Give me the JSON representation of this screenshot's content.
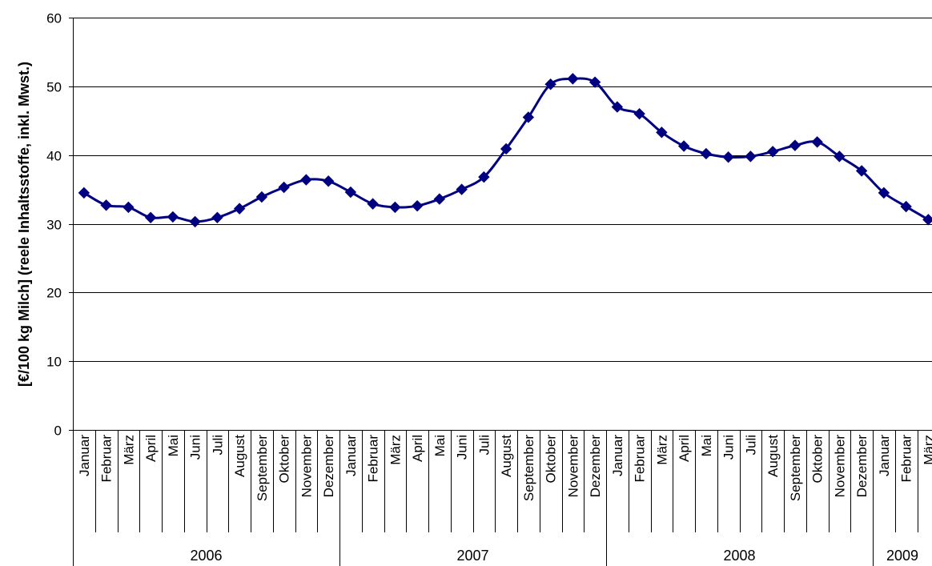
{
  "chart_data": {
    "type": "line",
    "title": "",
    "xlabel": "",
    "ylabel": "[€/100 kg Milch] (reele Inhaltsstoffe, inkl. Mwst.)",
    "ylim": [
      0,
      60
    ],
    "yticks": [
      0,
      10,
      20,
      30,
      40,
      50,
      60
    ],
    "grid": true,
    "legend": "none",
    "colors": {
      "line": "#000080",
      "marker": "#000080",
      "grid": "#000000"
    },
    "marker": "diamond",
    "groups": [
      {
        "label": "2006",
        "months": [
          "Januar",
          "Februar",
          "März",
          "April",
          "Mai",
          "Juni",
          "Juli",
          "August",
          "September",
          "Oktober",
          "November",
          "Dezember"
        ]
      },
      {
        "label": "2007",
        "months": [
          "Januar",
          "Februar",
          "März",
          "April",
          "Mai",
          "Juni",
          "Juli",
          "August",
          "September",
          "Oktober",
          "November",
          "Dezember"
        ]
      },
      {
        "label": "2008",
        "months": [
          "Januar",
          "Februar",
          "März",
          "April",
          "Mai",
          "Juni",
          "Juli",
          "August",
          "September",
          "Oktober",
          "November",
          "Dezember"
        ]
      },
      {
        "label": "2009",
        "months": [
          "Januar",
          "Februar",
          "März"
        ]
      }
    ],
    "series": [
      {
        "values": [
          34.5,
          32.7,
          32.4,
          30.9,
          31.0,
          30.3,
          30.9,
          32.2,
          33.9,
          35.3,
          36.4,
          36.2,
          34.6,
          32.9,
          32.4,
          32.6,
          33.6,
          35.0,
          36.8,
          40.9,
          45.5,
          50.3,
          51.1,
          50.6,
          47.0,
          46.0,
          43.3,
          41.3,
          40.2,
          39.7,
          39.8,
          40.5,
          41.4,
          41.9,
          39.8,
          37.7,
          34.5,
          32.5,
          30.6
        ]
      }
    ]
  }
}
